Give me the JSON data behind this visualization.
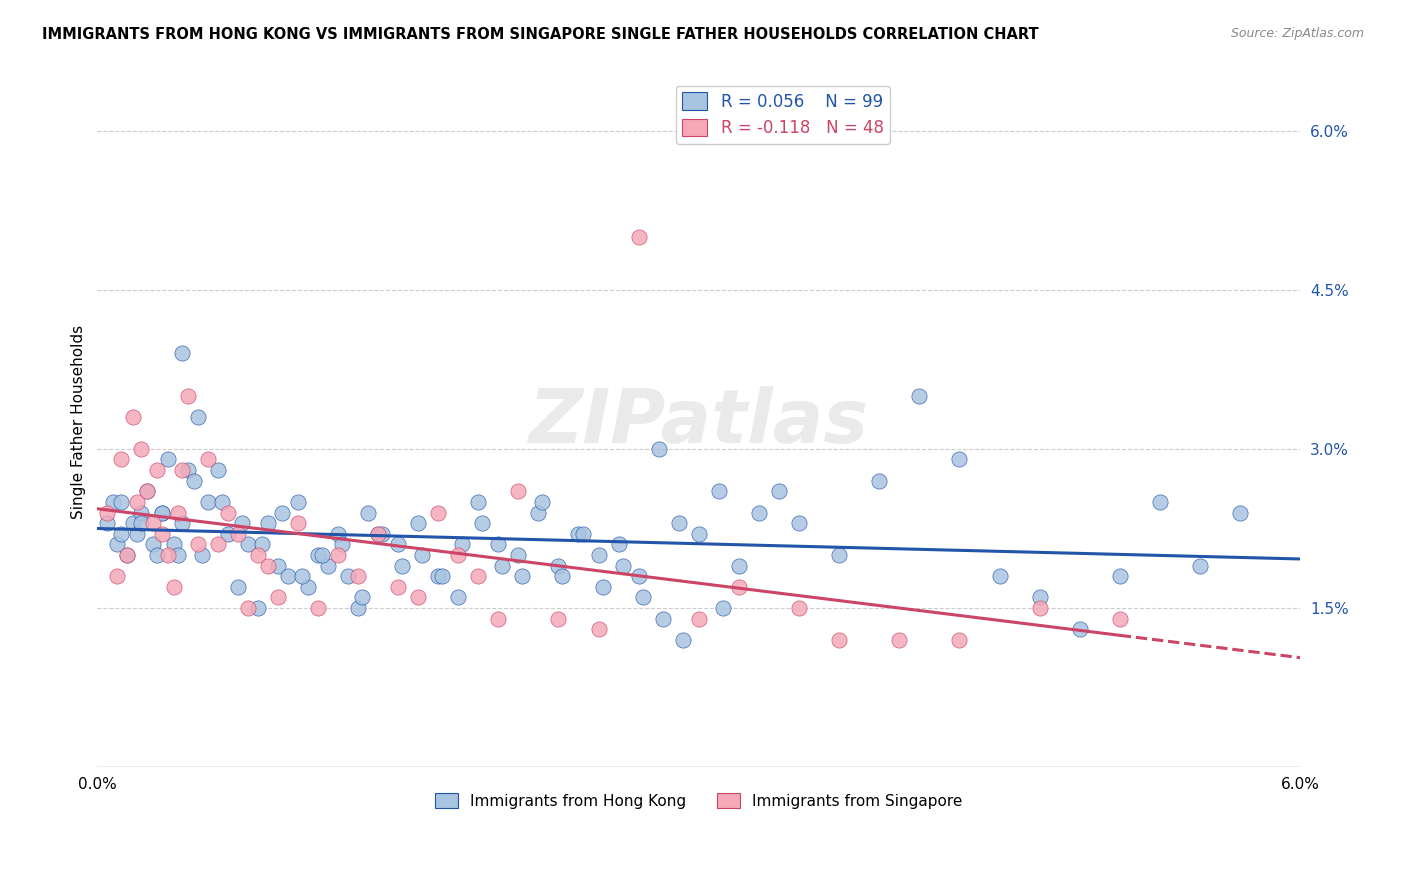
{
  "title": "IMMIGRANTS FROM HONG KONG VS IMMIGRANTS FROM SINGAPORE SINGLE FATHER HOUSEHOLDS CORRELATION CHART",
  "source": "Source: ZipAtlas.com",
  "ylabel": "Single Father Households",
  "legend_label_blue": "Immigrants from Hong Kong",
  "legend_label_pink": "Immigrants from Singapore",
  "legend_R_blue": "R = 0.056",
  "legend_N_blue": "N = 99",
  "legend_R_pink": "R = -0.118",
  "legend_N_pink": "N = 48",
  "xlim": [
    0.0,
    6.0
  ],
  "ylim": [
    0.0,
    6.5
  ],
  "yticks": [
    1.5,
    3.0,
    4.5,
    6.0
  ],
  "ytick_labels": [
    "1.5%",
    "3.0%",
    "4.5%",
    "6.0%"
  ],
  "color_blue": "#a8c4e0",
  "color_pink": "#f4a8b8",
  "line_color_blue": "#2255aa",
  "line_color_pink": "#cc4466",
  "watermark": "ZIPatlas",
  "blue_x": [
    0.05,
    0.08,
    0.1,
    0.12,
    0.15,
    0.18,
    0.2,
    0.22,
    0.25,
    0.28,
    0.3,
    0.32,
    0.35,
    0.38,
    0.4,
    0.42,
    0.45,
    0.48,
    0.5,
    0.55,
    0.6,
    0.65,
    0.7,
    0.75,
    0.8,
    0.85,
    0.9,
    0.95,
    1.0,
    1.05,
    1.1,
    1.15,
    1.2,
    1.25,
    1.3,
    1.35,
    1.4,
    1.5,
    1.6,
    1.7,
    1.8,
    1.9,
    2.0,
    2.1,
    2.2,
    2.3,
    2.4,
    2.5,
    2.6,
    2.7,
    2.8,
    2.9,
    3.0,
    3.1,
    3.2,
    3.3,
    3.4,
    3.5,
    3.7,
    3.9,
    4.1,
    4.3,
    4.5,
    4.7,
    4.9,
    5.1,
    5.3,
    5.5,
    5.7,
    0.12,
    0.22,
    0.32,
    0.42,
    0.52,
    0.62,
    0.72,
    0.82,
    0.92,
    1.02,
    1.12,
    1.22,
    1.32,
    1.42,
    1.52,
    1.62,
    1.72,
    1.82,
    1.92,
    2.02,
    2.12,
    2.22,
    2.32,
    2.42,
    2.52,
    2.62,
    2.72,
    2.82,
    2.92,
    3.12
  ],
  "blue_y": [
    2.3,
    2.5,
    2.1,
    2.5,
    2.0,
    2.3,
    2.2,
    2.4,
    2.6,
    2.1,
    2.0,
    2.4,
    2.9,
    2.1,
    2.0,
    2.3,
    2.8,
    2.7,
    3.3,
    2.5,
    2.8,
    2.2,
    1.7,
    2.1,
    1.5,
    2.3,
    1.9,
    1.8,
    2.5,
    1.7,
    2.0,
    1.9,
    2.2,
    1.8,
    1.5,
    2.4,
    2.2,
    2.1,
    2.3,
    1.8,
    1.6,
    2.5,
    2.1,
    2.0,
    2.4,
    1.9,
    2.2,
    2.0,
    2.1,
    1.8,
    3.0,
    2.3,
    2.2,
    2.6,
    1.9,
    2.4,
    2.6,
    2.3,
    2.0,
    2.7,
    3.5,
    2.9,
    1.8,
    1.6,
    1.3,
    1.8,
    2.5,
    1.9,
    2.4,
    2.2,
    2.3,
    2.4,
    3.9,
    2.0,
    2.5,
    2.3,
    2.1,
    2.4,
    1.8,
    2.0,
    2.1,
    1.6,
    2.2,
    1.9,
    2.0,
    1.8,
    2.1,
    2.3,
    1.9,
    1.8,
    2.5,
    1.8,
    2.2,
    1.7,
    1.9,
    1.6,
    1.4,
    1.2,
    1.5
  ],
  "pink_x": [
    0.05,
    0.1,
    0.12,
    0.15,
    0.18,
    0.2,
    0.22,
    0.25,
    0.28,
    0.3,
    0.32,
    0.35,
    0.38,
    0.4,
    0.42,
    0.45,
    0.5,
    0.55,
    0.6,
    0.65,
    0.7,
    0.75,
    0.8,
    0.85,
    0.9,
    1.0,
    1.1,
    1.2,
    1.3,
    1.4,
    1.5,
    1.6,
    1.7,
    1.8,
    1.9,
    2.0,
    2.1,
    2.3,
    2.5,
    2.7,
    3.0,
    3.2,
    3.5,
    3.7,
    4.0,
    4.3,
    4.7,
    5.1
  ],
  "pink_y": [
    2.4,
    1.8,
    2.9,
    2.0,
    3.3,
    2.5,
    3.0,
    2.6,
    2.3,
    2.8,
    2.2,
    2.0,
    1.7,
    2.4,
    2.8,
    3.5,
    2.1,
    2.9,
    2.1,
    2.4,
    2.2,
    1.5,
    2.0,
    1.9,
    1.6,
    2.3,
    1.5,
    2.0,
    1.8,
    2.2,
    1.7,
    1.6,
    2.4,
    2.0,
    1.8,
    1.4,
    2.6,
    1.4,
    1.3,
    5.0,
    1.4,
    1.7,
    1.5,
    1.2,
    1.2,
    1.2,
    1.5,
    1.4
  ]
}
